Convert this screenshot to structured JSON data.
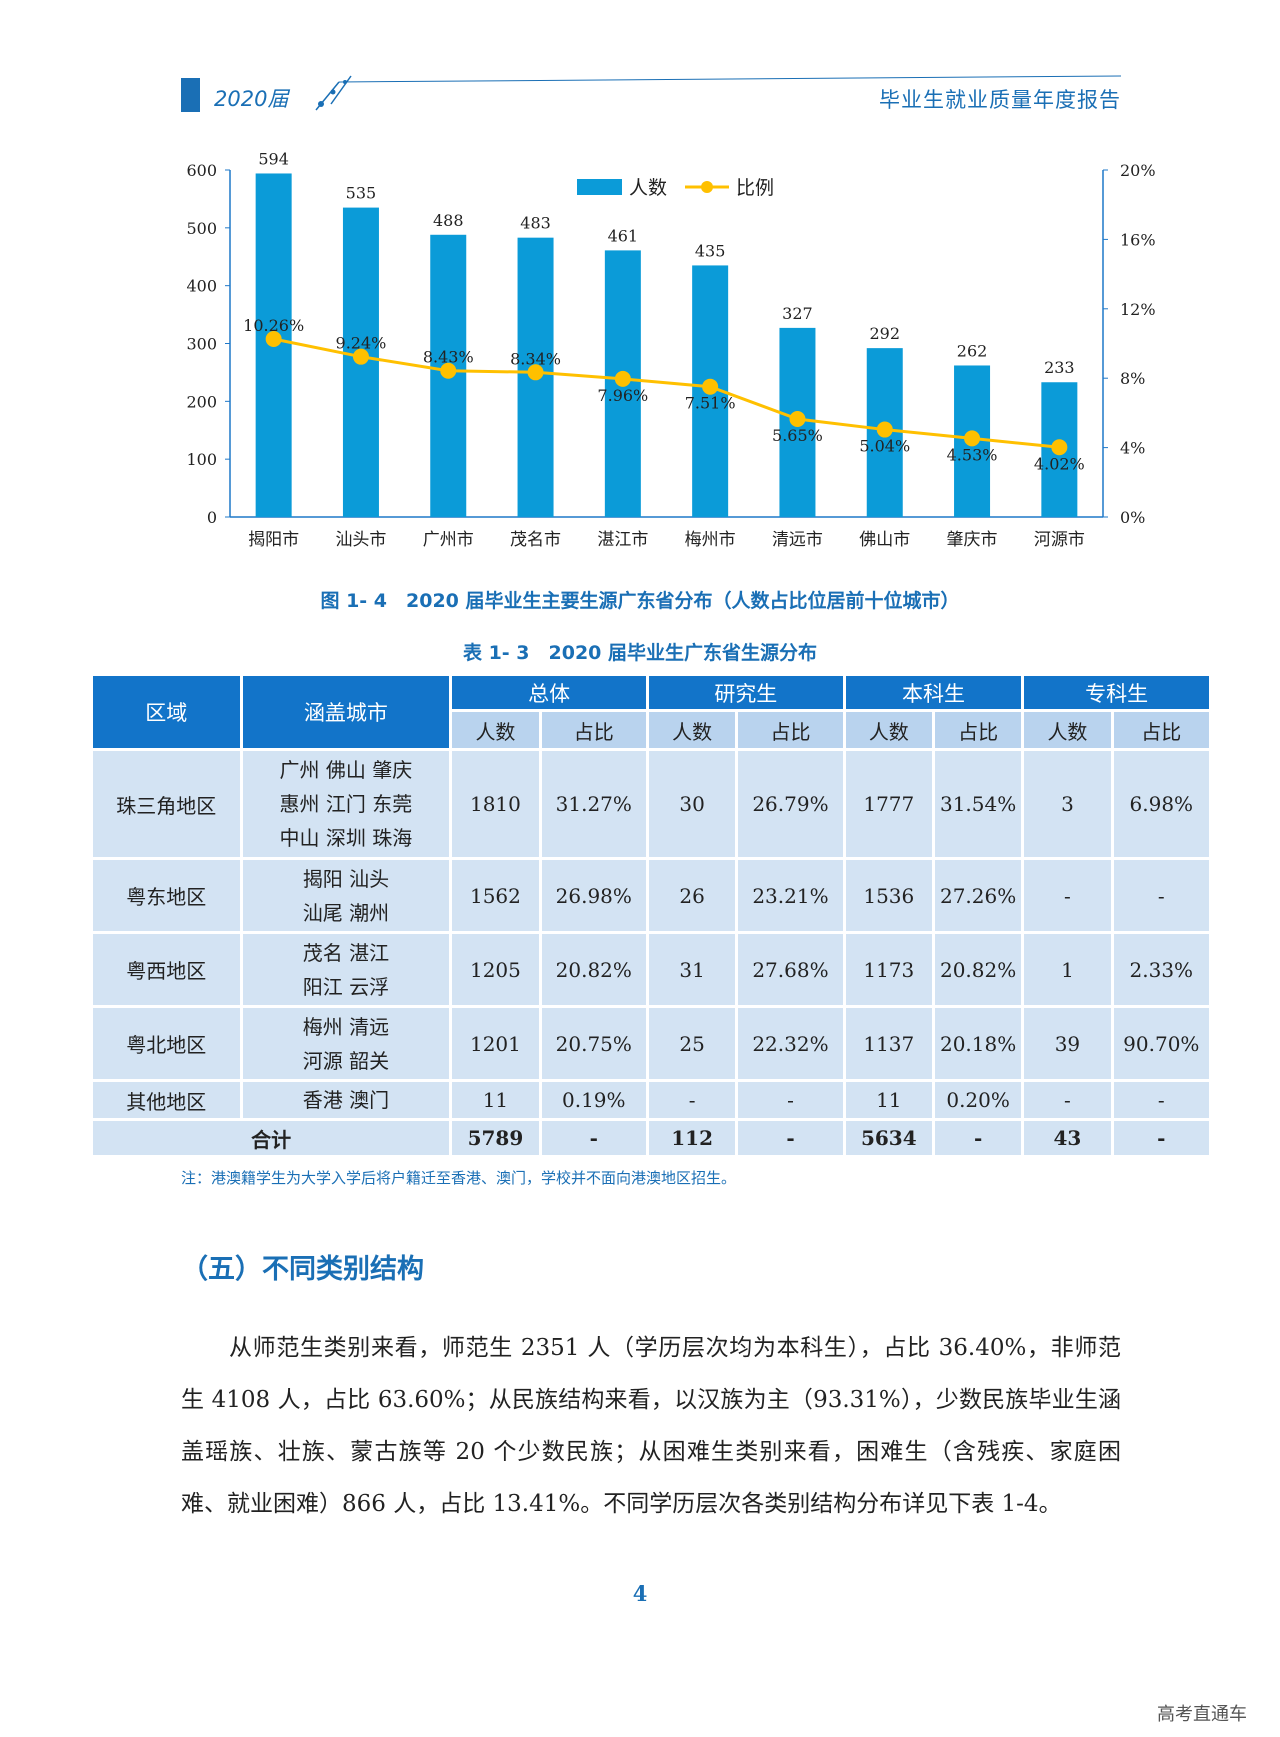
{
  "header": {
    "year": "2020届",
    "title": "毕业生就业质量年度报告"
  },
  "chart_data": {
    "type": "bar+line",
    "categories": [
      "揭阳市",
      "汕头市",
      "广州市",
      "茂名市",
      "湛江市",
      "梅州市",
      "清远市",
      "佛山市",
      "肇庆市",
      "河源市"
    ],
    "series": [
      {
        "name": "人数",
        "type": "bar",
        "axis": "left",
        "color": "#0b9bd8",
        "values": [
          594,
          535,
          488,
          483,
          461,
          435,
          327,
          292,
          262,
          233
        ]
      },
      {
        "name": "比例",
        "type": "line",
        "axis": "right",
        "color": "#ffc000",
        "values": [
          10.26,
          9.24,
          8.43,
          8.34,
          7.96,
          7.51,
          5.65,
          5.04,
          4.53,
          4.02
        ],
        "labels": [
          "10.26%",
          "9.24%",
          "8.43%",
          "8.34%",
          "7.96%",
          "7.51%",
          "5.65%",
          "5.04%",
          "4.53%",
          "4.02%"
        ]
      }
    ],
    "y_left": {
      "min": 0,
      "max": 600,
      "ticks": [
        "0",
        "100",
        "200",
        "300",
        "400",
        "500",
        "600"
      ]
    },
    "y_right": {
      "min": 0,
      "max": 20,
      "ticks": [
        "0%",
        "4%",
        "8%",
        "12%",
        "16%",
        "20%"
      ]
    },
    "legend": "top-center",
    "grid": false,
    "title": "图 1- 4　2020 届毕业生主要生源广东省分布（人数占比位居前十位城市）"
  },
  "figure_caption": "图 1- 4　2020 届毕业生主要生源广东省分布（人数占比位居前十位城市）",
  "table_caption": "表 1- 3　2020 届毕业生广东省生源分布",
  "table": {
    "headers": {
      "region": "区域",
      "cities": "涵盖城市",
      "groups": [
        "总体",
        "研究生",
        "本科生",
        "专科生"
      ],
      "count": "人数",
      "ratio": "占比"
    },
    "rows": [
      {
        "region": "珠三角地区",
        "cities": [
          "广州 佛山 肇庆",
          "惠州 江门 东莞",
          "中山 深圳 珠海"
        ],
        "values": [
          "1810",
          "31.27%",
          "30",
          "26.79%",
          "1777",
          "31.54%",
          "3",
          "6.98%"
        ]
      },
      {
        "region": "粤东地区",
        "cities": [
          "揭阳 汕头",
          "汕尾 潮州"
        ],
        "values": [
          "1562",
          "26.98%",
          "26",
          "23.21%",
          "1536",
          "27.26%",
          "-",
          "-"
        ]
      },
      {
        "region": "粤西地区",
        "cities": [
          "茂名 湛江",
          "阳江 云浮"
        ],
        "values": [
          "1205",
          "20.82%",
          "31",
          "27.68%",
          "1173",
          "20.82%",
          "1",
          "2.33%"
        ]
      },
      {
        "region": "粤北地区",
        "cities": [
          "梅州 清远",
          "河源 韶关"
        ],
        "values": [
          "1201",
          "20.75%",
          "25",
          "22.32%",
          "1137",
          "20.18%",
          "39",
          "90.70%"
        ]
      },
      {
        "region": "其他地区",
        "cities": [
          "香港 澳门"
        ],
        "values": [
          "11",
          "0.19%",
          "-",
          "-",
          "11",
          "0.20%",
          "-",
          "-"
        ]
      }
    ],
    "total": {
      "label": "合计",
      "values": [
        "5789",
        "-",
        "112",
        "-",
        "5634",
        "-",
        "43",
        "-"
      ]
    }
  },
  "note": "注：港澳籍学生为大学入学后将户籍迁至香港、澳门，学校并不面向港澳地区招生。",
  "section_title": "（五）不同类别结构",
  "paragraph": "从师范生类别来看，师范生 2351 人（学历层次均为本科生），占比 36.40%，非师范生 4108 人，占比 63.60%；从民族结构来看，以汉族为主（93.31%），少数民族毕业生涵盖瑶族、壮族、蒙古族等 20 个少数民族；从困难生类别来看，困难生（含残疾、家庭困难、就业困难）866 人，占比 13.41%。不同学历层次各类别结构分布详见下表 1-4。",
  "page_number": "4",
  "watermark": "高考直通车"
}
